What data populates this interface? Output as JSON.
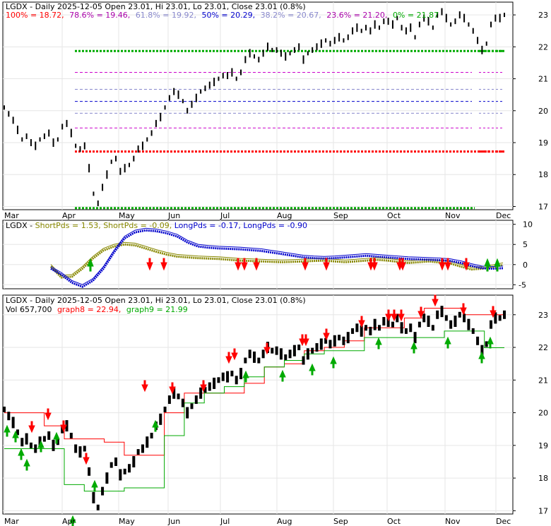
{
  "panels": {
    "top": {
      "title": "LGDX - Daily 2025-12-05 Open 23.01, Hi 23.01, Lo 23.01, Close 23.01 (0.8%)",
      "fib_labels": [
        {
          "text": "100% = 18.72,",
          "color": "#ff0000"
        },
        {
          "text": "78.6% = 19.46,",
          "color": "#aa00aa"
        },
        {
          "text": "61.8% = 19.92,",
          "color": "#8888cc"
        },
        {
          "text": "50% = 20.29,",
          "color": "#0000cc"
        },
        {
          "text": "38.2% = 20.67,",
          "color": "#8888cc"
        },
        {
          "text": "23.6% = 21.20,",
          "color": "#aa00aa"
        },
        {
          "text": "0% = 21.87",
          "color": "#00aa00"
        }
      ]
    },
    "middle": {
      "labels": [
        {
          "text": "LGDX - ",
          "color": "#000000"
        },
        {
          "text": "ShortPds = 1.53,",
          "color": "#888800"
        },
        {
          "text": " ShortPds = -0.09,",
          "color": "#888800"
        },
        {
          "text": " LongPds = -0.17,",
          "color": "#0000cc"
        },
        {
          "text": " LongPds = -0.90",
          "color": "#0000cc"
        }
      ]
    },
    "bottom": {
      "title": "LGDX - Daily 2025-12-05 Open 23.01, Hi 23.01, Lo 23.01, Close 23.01 (0.8%)",
      "vol_prefix": "Vol 657,700",
      "graph8": "graph8 = 22.94,",
      "graph9": "graph9 = 21.99"
    }
  },
  "colors": {
    "up": "#000000",
    "resist": "#ff0000",
    "support": "#00aa00",
    "short": "#888800",
    "long": "#0000cc",
    "fib_magenta": "#cc00cc",
    "fib_blue": "#0000cc",
    "fib_light": "#8888cc"
  },
  "chart_data": [
    {
      "type": "line",
      "title": "LGDX - Daily 2025-12-05 Open 23.01, Hi 23.01, Lo 23.01, Close 23.01 (0.8%)",
      "x_labels": [
        "Mar",
        "Apr",
        "May",
        "Jun",
        "Jul",
        "Aug",
        "Sep",
        "Oct",
        "Nov",
        "Dec"
      ],
      "y_ticks": [
        17,
        18,
        19,
        20,
        21,
        22,
        23
      ],
      "ylim": [
        16.9,
        23.4
      ],
      "close": [
        20.1,
        19.9,
        19.7,
        19.4,
        19.1,
        19.2,
        19.0,
        18.9,
        19.1,
        19.2,
        19.3,
        19.0,
        19.1,
        19.5,
        19.6,
        19.3,
        18.9,
        18.8,
        18.9,
        18.2,
        17.4,
        17.1,
        17.6,
        18.0,
        18.4,
        18.5,
        18.1,
        18.2,
        18.3,
        18.5,
        18.8,
        18.9,
        19.1,
        19.3,
        19.6,
        19.8,
        20.1,
        20.4,
        20.6,
        20.5,
        20.3,
        20.0,
        20.2,
        20.4,
        20.6,
        20.7,
        20.8,
        20.9,
        21.0,
        21.1,
        21.1,
        21.2,
        21.0,
        21.2,
        21.6,
        21.8,
        21.7,
        21.6,
        21.8,
        22.0,
        21.9,
        21.9,
        21.8,
        21.7,
        21.8,
        21.9,
        22.0,
        21.6,
        21.8,
        21.9,
        22.0,
        22.1,
        22.2,
        22.1,
        22.2,
        22.3,
        22.2,
        22.3,
        22.5,
        22.6,
        22.5,
        22.6,
        22.5,
        22.7,
        22.6,
        22.8,
        22.8,
        22.7,
        22.9,
        22.6,
        22.5,
        22.6,
        22.3,
        22.7,
        22.9,
        22.8,
        22.6,
        23.0,
        23.1,
        22.9,
        22.7,
        22.8,
        23.0,
        22.9,
        22.7,
        22.5,
        22.2,
        21.9,
        22.1,
        22.7,
        22.9,
        22.9,
        23.0
      ],
      "fib_levels": [
        {
          "label": "100%",
          "value": 18.72
        },
        {
          "label": "78.6%",
          "value": 19.46
        },
        {
          "label": "61.8%",
          "value": 19.92
        },
        {
          "label": "50%",
          "value": 20.29
        },
        {
          "label": "38.2%",
          "value": 20.67
        },
        {
          "label": "23.6%",
          "value": 21.2
        },
        {
          "label": "0%",
          "value": 21.87
        }
      ]
    },
    {
      "type": "line",
      "y_ticks": [
        -5,
        0,
        5,
        10
      ],
      "ylim": [
        -6,
        11
      ],
      "series": [
        {
          "name": "ShortPds",
          "values": [
            -0.5,
            -3.2,
            -3.0,
            -1.0,
            1.5,
            3.5,
            4.5,
            5.0,
            4.8,
            4.0,
            3.2,
            2.5,
            2.0,
            1.8,
            1.6,
            1.5,
            1.4,
            1.2,
            1.0,
            0.9,
            0.8,
            0.7,
            0.6,
            0.7,
            0.8,
            0.9,
            1.0,
            0.8,
            0.6,
            0.8,
            1.0,
            1.2,
            1.0,
            0.7,
            0.4,
            0.6,
            0.8,
            0.5,
            0.3,
            -0.5,
            -1.2,
            -1.0,
            -0.6,
            -0.09
          ]
        },
        {
          "name": "LongPds",
          "values": [
            -1.0,
            -2.5,
            -4.5,
            -5.5,
            -4.0,
            -1.0,
            3.0,
            6.5,
            8.0,
            8.5,
            8.3,
            7.8,
            7.0,
            5.5,
            4.5,
            4.2,
            4.0,
            3.9,
            3.8,
            3.6,
            3.4,
            3.0,
            2.6,
            2.2,
            1.8,
            1.6,
            1.5,
            1.6,
            1.8,
            2.0,
            2.2,
            2.0,
            1.8,
            1.6,
            1.4,
            1.3,
            1.2,
            1.1,
            0.9,
            0.4,
            -0.3,
            -0.9,
            -1.0,
            -0.9
          ]
        }
      ]
    },
    {
      "type": "line",
      "title": "LGDX - Daily 2025-12-05 Open 23.01, Hi 23.01, Lo 23.01, Close 23.01 (0.8%)",
      "x_labels": [
        "Mar",
        "Apr",
        "May",
        "Jun",
        "Jul",
        "Aug",
        "Sep",
        "Oct",
        "Nov",
        "Dec"
      ],
      "y_ticks": [
        17,
        18,
        19,
        20,
        21,
        22,
        23
      ],
      "ylim": [
        16.9,
        23.6
      ],
      "series": [
        {
          "name": "graph8",
          "values": [
            20.0,
            20.0,
            19.6,
            19.2,
            19.2,
            19.1,
            18.7,
            18.7,
            20.0,
            20.6,
            20.6,
            20.6,
            20.9,
            21.4,
            21.5,
            21.9,
            22.0,
            22.2,
            22.6,
            22.6,
            22.9,
            23.2,
            23.2,
            23.0,
            23.0,
            22.94
          ]
        },
        {
          "name": "graph9",
          "values": [
            18.9,
            18.9,
            18.9,
            17.8,
            17.6,
            17.6,
            17.7,
            17.7,
            19.3,
            20.3,
            20.6,
            20.8,
            21.1,
            21.4,
            21.6,
            21.8,
            21.9,
            21.9,
            22.3,
            22.3,
            22.3,
            22.3,
            22.5,
            22.5,
            21.99,
            21.99
          ]
        }
      ],
      "volume": "657,700"
    }
  ]
}
